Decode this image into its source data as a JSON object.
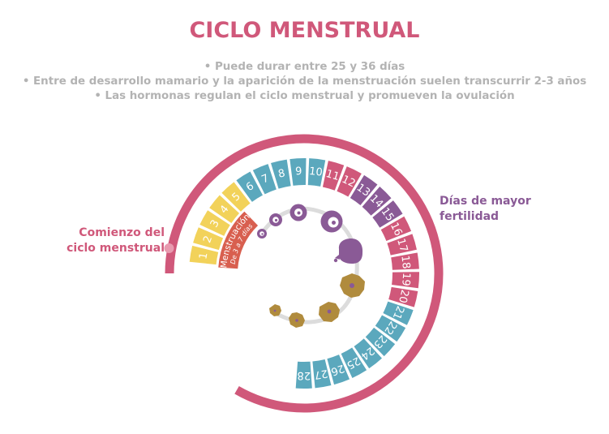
{
  "title": "CICLO MENSTRUAL",
  "bullets": [
    "• Puede durar entre 25 y 36 días",
    "• Entre de desarrollo mamario y la aparición de la menstruación suelen transcurrir 2-3 años",
    "• Las hormonas regulan el ciclo menstrual y promueven la ovulación"
  ],
  "labels": {
    "start_line1": "Comienzo del",
    "start_line2": "ciclo menstrual",
    "fertile_line1": "Días de mayor",
    "fertile_line2": "fertilidad",
    "menstruation_line1": "Menstruación",
    "menstruation_line2": "De 3 a 7 días"
  },
  "days": [
    {
      "n": "1",
      "phase": "menstrual"
    },
    {
      "n": "2",
      "phase": "menstrual"
    },
    {
      "n": "3",
      "phase": "menstrual"
    },
    {
      "n": "4",
      "phase": "menstrual"
    },
    {
      "n": "5",
      "phase": "menstrual"
    },
    {
      "n": "6",
      "phase": "follicular"
    },
    {
      "n": "7",
      "phase": "follicular"
    },
    {
      "n": "8",
      "phase": "follicular"
    },
    {
      "n": "9",
      "phase": "follicular"
    },
    {
      "n": "10",
      "phase": "follicular"
    },
    {
      "n": "11",
      "phase": "pink"
    },
    {
      "n": "12",
      "phase": "pink"
    },
    {
      "n": "13",
      "phase": "fertile"
    },
    {
      "n": "14",
      "phase": "fertile"
    },
    {
      "n": "15",
      "phase": "fertile"
    },
    {
      "n": "16",
      "phase": "pink"
    },
    {
      "n": "17",
      "phase": "pink"
    },
    {
      "n": "18",
      "phase": "pink"
    },
    {
      "n": "19",
      "phase": "pink"
    },
    {
      "n": "20",
      "phase": "pink"
    },
    {
      "n": "21",
      "phase": "follicular"
    },
    {
      "n": "22",
      "phase": "follicular"
    },
    {
      "n": "23",
      "phase": "follicular"
    },
    {
      "n": "24",
      "phase": "follicular"
    },
    {
      "n": "25",
      "phase": "follicular"
    },
    {
      "n": "26",
      "phase": "follicular"
    },
    {
      "n": "27",
      "phase": "follicular"
    },
    {
      "n": "28",
      "phase": "follicular"
    }
  ],
  "colors": {
    "menstrual": "#f2d25a",
    "follicular": "#5ba8bd",
    "pink": "#d0587a",
    "fertile": "#8a5a96",
    "arc": "#d0587a",
    "menstruation_band": "#d85f4f",
    "egg": "#8a5a96",
    "corpus": "#b08b3d",
    "track": "#dcdcdc",
    "title": "#d0587a",
    "bullets": "#b3b3b3"
  }
}
